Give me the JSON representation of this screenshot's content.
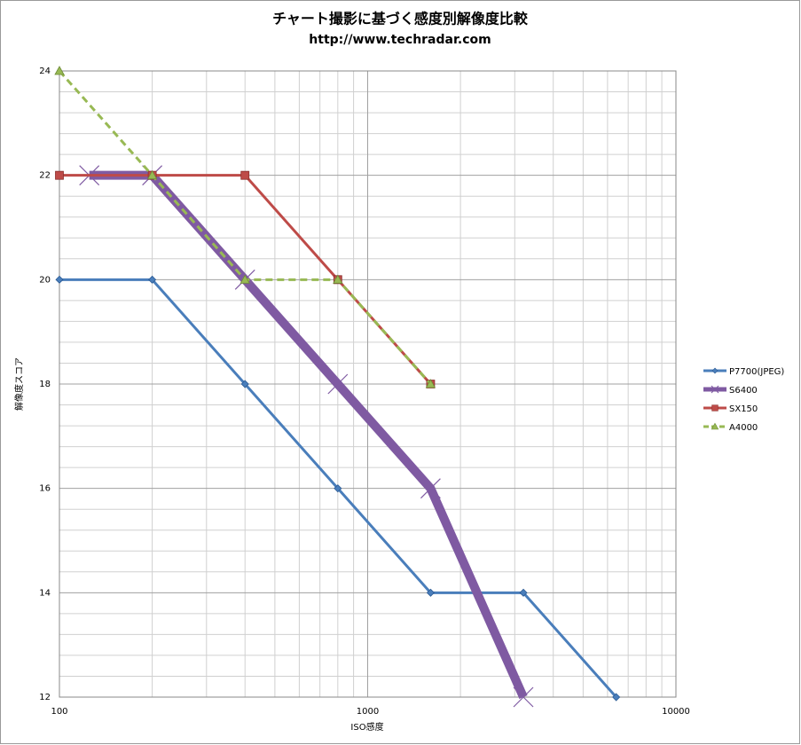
{
  "chart_data": {
    "type": "line",
    "title": "チャート撮影に基づく感度別解像度比較",
    "subtitle": "http://www.techradar.com",
    "x_label": "ISO感度",
    "y_label": "解像度スコア",
    "x_scale": "log",
    "xlim": [
      100,
      10000
    ],
    "xticks": [
      100,
      1000,
      10000
    ],
    "ylim": [
      12,
      24
    ],
    "yticks": [
      12,
      14,
      16,
      18,
      20,
      22,
      24
    ],
    "grid": true,
    "legend": "right",
    "series": [
      {
        "name": "P7700(JPEG)",
        "color": "#4a7ebb",
        "marker": "diamond",
        "width": 3,
        "dash": false,
        "x": [
          100,
          200,
          400,
          800,
          1600,
          3200,
          6400
        ],
        "values": [
          20,
          20,
          18,
          16,
          14,
          14,
          12
        ]
      },
      {
        "name": "S6400",
        "color": "#7f5aa2",
        "marker": "x",
        "width": 10,
        "dash": false,
        "x": [
          125,
          200,
          400,
          800,
          1600,
          3200
        ],
        "values": [
          22,
          22,
          20,
          18,
          16,
          12
        ]
      },
      {
        "name": "SX150",
        "color": "#be4b48",
        "marker": "square",
        "width": 3,
        "dash": false,
        "x": [
          100,
          200,
          400,
          800,
          1600
        ],
        "values": [
          22,
          22,
          22,
          20,
          18
        ]
      },
      {
        "name": "A4000",
        "color": "#98b954",
        "marker": "triangle",
        "width": 3,
        "dash": true,
        "x": [
          100,
          200,
          400,
          800,
          1600
        ],
        "values": [
          24,
          22,
          20,
          20,
          18
        ]
      }
    ]
  }
}
